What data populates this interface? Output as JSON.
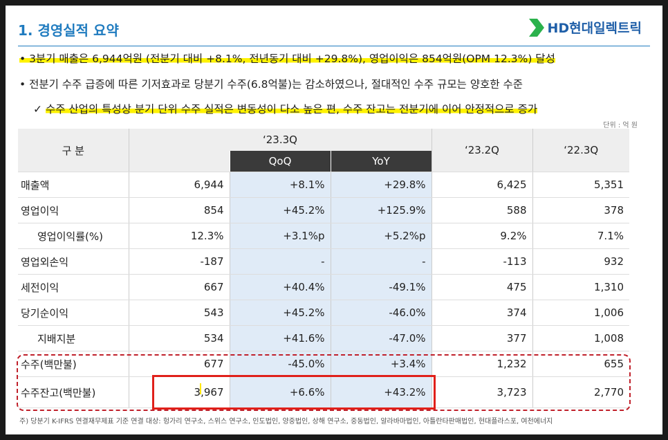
{
  "header": {
    "title": "1. 경영실적 요약",
    "logo_text": "HD현대일렉트릭",
    "logo_color": "#2bb24c"
  },
  "bullets": {
    "b1": "• 3분기 매출은 6,944억원 (전분기 대비 +8.1%, 전년동기 대비 +29.8%), 영업이익은 854억원(OPM 12.3%) 달성",
    "b2": "• 전분기 수주 급증에 따른 기저효과로 당분기 수주(6.8억불)는 감소하였으나, 절대적인 수주 규모는 양호한 수준",
    "b3_check": "✓",
    "b3": "수주 산업의 특성상 분기 단위 수주 실적은 변동성이 다소 높은 편, 수주 잔고는 전분기에 이어 안정적으로 증가"
  },
  "unit": "단위 : 억 원",
  "table": {
    "h_label": "구    분",
    "h_233q": "‘23.3Q",
    "h_qoq": "QoQ",
    "h_yoy": "YoY",
    "h_232q": "‘23.2Q",
    "h_223q": "‘22.3Q",
    "rows": [
      {
        "label": "매출액",
        "v233": "6,944",
        "qoq": "+8.1%",
        "yoy": "+29.8%",
        "v232": "6,425",
        "v223": "5,351"
      },
      {
        "label": "영업이익",
        "v233": "854",
        "qoq": "+45.2%",
        "yoy": "+125.9%",
        "v232": "588",
        "v223": "378"
      },
      {
        "label": "영업이익률(%)",
        "v233": "12.3%",
        "qoq": "+3.1%p",
        "yoy": "+5.2%p",
        "v232": "9.2%",
        "v223": "7.1%"
      },
      {
        "label": "영업외손익",
        "v233": "-187",
        "qoq": "-",
        "yoy": "-",
        "v232": "-113",
        "v223": "932"
      },
      {
        "label": "세전이익",
        "v233": "667",
        "qoq": "+40.4%",
        "yoy": "-49.1%",
        "v232": "475",
        "v223": "1,310"
      },
      {
        "label": "당기순이익",
        "v233": "543",
        "qoq": "+45.2%",
        "yoy": "-46.0%",
        "v232": "374",
        "v223": "1,006"
      },
      {
        "label": "지배지분",
        "v233": "534",
        "qoq": "+41.6%",
        "yoy": "-47.0%",
        "v232": "377",
        "v223": "1,008"
      },
      {
        "label": "수주(백만불)",
        "v233": "677",
        "qoq": "-45.0%",
        "yoy": "+3.4%",
        "v232": "1,232",
        "v223": "655"
      },
      {
        "label": "수주잔고(백만불)",
        "v233": "3,967",
        "qoq": "+6.6%",
        "yoy": "+43.2%",
        "v232": "3,723",
        "v223": "2,770"
      }
    ]
  },
  "footnote": "주) 당분기 K-IFRS 연결재무제표 기준 연결 대상: 헝가리 연구소, 스위스 연구소, 인도법인, 양중법인, 상해 연구소, 중동법인, 알라바마법인, 아틀란타판매법인, 현대플라스포, 여천에너지"
}
